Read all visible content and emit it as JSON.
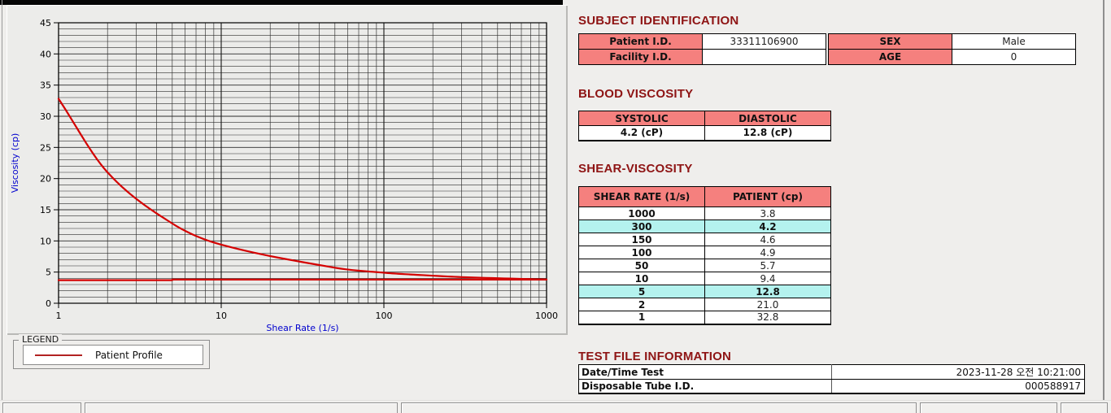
{
  "colors": {
    "accent_red": "#D40000",
    "legend_red": "#B22222",
    "heading_maroon": "#8E1414",
    "header_pink": "#F5807E",
    "highlight_cyan": "#B4F2EE",
    "axis_label_blue": "#0000CE"
  },
  "chart_data": {
    "type": "line",
    "title": "",
    "xlabel": "Shear Rate (1/s)",
    "ylabel": "Viscosity (cp)",
    "x_scale": "log",
    "xlim": [
      1,
      1000
    ],
    "ylim": [
      0,
      45
    ],
    "x_ticks": [
      1,
      10,
      100,
      1000
    ],
    "y_ticks": [
      0,
      5,
      10,
      15,
      20,
      25,
      30,
      35,
      40,
      45
    ],
    "grid": "minor gridlines every 1 cp horizontally and every log step vertically, dark on light gray",
    "series": [
      {
        "name": "flat-reference-line",
        "color": "#D40000",
        "smooth": false,
        "x": [
          1,
          5,
          5,
          1000
        ],
        "y": [
          3.7,
          3.7,
          3.8,
          3.8
        ]
      },
      {
        "name": "Patient Profile",
        "color": "#D40000",
        "smooth": true,
        "x": [
          1,
          2,
          5,
          10,
          50,
          100,
          150,
          300,
          1000
        ],
        "y": [
          32.8,
          21.0,
          12.8,
          9.4,
          5.7,
          4.9,
          4.6,
          4.2,
          3.8
        ]
      }
    ],
    "legend": {
      "title": "LEGEND",
      "position": "below-chart",
      "entries": [
        {
          "label": "Patient Profile",
          "color": "#B22222"
        }
      ]
    }
  },
  "subject_identification": {
    "title": "SUBJECT IDENTIFICATION",
    "rows": [
      {
        "label1": "Patient I.D.",
        "value1": "33311106900",
        "label2": "SEX",
        "value2": "Male"
      },
      {
        "label1": "Facility I.D.",
        "value1": "",
        "label2": "AGE",
        "value2": "0"
      }
    ]
  },
  "blood_viscosity": {
    "title": "BLOOD VISCOSITY",
    "headers": [
      "SYSTOLIC",
      "DIASTOLIC"
    ],
    "values": [
      "4.2 (cP)",
      "12.8 (cP)"
    ]
  },
  "shear_viscosity": {
    "title": "SHEAR-VISCOSITY",
    "headers": [
      "SHEAR RATE (1/s)",
      "PATIENT (cp)"
    ],
    "rows": [
      {
        "shear_rate": "1000",
        "patient": "3.8",
        "highlight": false
      },
      {
        "shear_rate": "300",
        "patient": "4.2",
        "highlight": true
      },
      {
        "shear_rate": "150",
        "patient": "4.6",
        "highlight": false
      },
      {
        "shear_rate": "100",
        "patient": "4.9",
        "highlight": false
      },
      {
        "shear_rate": "50",
        "patient": "5.7",
        "highlight": false
      },
      {
        "shear_rate": "10",
        "patient": "9.4",
        "highlight": false
      },
      {
        "shear_rate": "5",
        "patient": "12.8",
        "highlight": true
      },
      {
        "shear_rate": "2",
        "patient": "21.0",
        "highlight": false
      },
      {
        "shear_rate": "1",
        "patient": "32.8",
        "highlight": false
      }
    ]
  },
  "test_file_information": {
    "title": "TEST FILE INFORMATION",
    "rows": [
      {
        "label": "Date/Time Test",
        "value": "2023-11-28  오전 10:21:00"
      },
      {
        "label": "Disposable Tube I.D.",
        "value": "000588917"
      }
    ]
  }
}
